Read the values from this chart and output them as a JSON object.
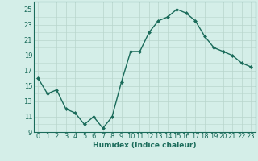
{
  "x": [
    0,
    1,
    2,
    3,
    4,
    5,
    6,
    7,
    8,
    9,
    10,
    11,
    12,
    13,
    14,
    15,
    16,
    17,
    18,
    19,
    20,
    21,
    22,
    23
  ],
  "y": [
    16,
    14,
    14.5,
    12,
    11.5,
    10,
    11,
    9.5,
    11,
    15.5,
    19.5,
    19.5,
    22,
    23.5,
    24,
    25,
    24.5,
    23.5,
    21.5,
    20,
    19.5,
    19,
    18,
    17.5
  ],
  "line_color": "#1a6b5a",
  "marker": "D",
  "marker_size": 2.0,
  "bg_color": "#d4eee8",
  "grid_color": "#b8d5cc",
  "xlabel": "Humidex (Indice chaleur)",
  "xlabel_fontsize": 6.5,
  "tick_fontsize": 6.0,
  "ylim": [
    9,
    26
  ],
  "yticks": [
    9,
    11,
    13,
    15,
    17,
    19,
    21,
    23,
    25
  ],
  "xlim": [
    -0.5,
    23.5
  ],
  "xticks": [
    0,
    1,
    2,
    3,
    4,
    5,
    6,
    7,
    8,
    9,
    10,
    11,
    12,
    13,
    14,
    15,
    16,
    17,
    18,
    19,
    20,
    21,
    22,
    23
  ],
  "linewidth": 1.0
}
